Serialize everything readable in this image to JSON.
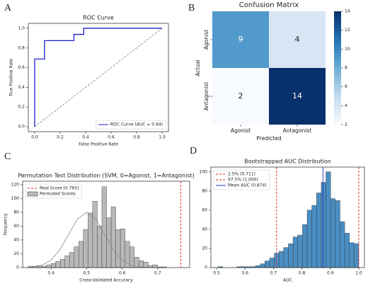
{
  "chart_data": [
    {
      "type": "line",
      "panel": "A",
      "title": "ROC Curve",
      "xlabel": "False Positive Rate",
      "ylabel": "True Positive Rate",
      "xlim": [
        -0.05,
        1.05
      ],
      "ylim": [
        -0.05,
        1.05
      ],
      "xticks": [
        {
          "value": 0,
          "label": "0.0"
        },
        0.2,
        0.4,
        0.6,
        0.8,
        {
          "value": 1,
          "label": "1.0"
        }
      ],
      "yticks": [
        {
          "value": 0,
          "label": "0.0"
        },
        0.2,
        0.4,
        0.6,
        0.8,
        {
          "value": 1,
          "label": "1.0"
        }
      ],
      "legend": "lower right",
      "series": [
        {
          "name": "ROC Curve (AUC = 0.94)",
          "color": "#1f1fd6",
          "x": [
            0,
            0,
            0.077,
            0.077,
            0.308,
            0.308,
            0.385,
            0.385,
            1
          ],
          "values": [
            0,
            0.688,
            0.688,
            0.875,
            0.875,
            0.938,
            0.938,
            1,
            1
          ]
        },
        {
          "color": "#777777",
          "dash": true,
          "x": [
            0,
            1
          ],
          "values": [
            0,
            1
          ]
        }
      ]
    },
    {
      "type": "heatmap",
      "panel": "B",
      "title": "Confusion Matrix",
      "xlabel": "Predicted",
      "ylabel": "Actual",
      "xcategories": [
        "Agonist",
        "Antagonist"
      ],
      "ycategories": [
        "Agonist",
        "Antagonist"
      ],
      "values": [
        [
          9,
          4
        ],
        [
          2,
          14
        ]
      ],
      "clim": [
        2,
        14
      ],
      "cticks": [
        2,
        4,
        6,
        8,
        10,
        12,
        14
      ],
      "colormap": "Blues"
    },
    {
      "type": "histogram",
      "panel": "C",
      "title": "Permutation Test Distribution (SVM, 0=Agonist, 1=Antagonist)",
      "xlabel": "Cross-Validated Accuracy",
      "ylabel": "Frequency",
      "color": "#b8b8b8",
      "bar_name": "Permuted Scores",
      "xlim": [
        0.32,
        0.79
      ],
      "ylim": [
        0,
        125
      ],
      "xticks": [
        0.4,
        0.5,
        0.6,
        0.7
      ],
      "yticks": [
        0,
        20,
        40,
        60,
        80,
        100,
        120
      ],
      "legend": "upper left",
      "bins": [
        0.335,
        0.348,
        0.361,
        0.374,
        0.387,
        0.4,
        0.413,
        0.426,
        0.439,
        0.452,
        0.465,
        0.478,
        0.491,
        0.504,
        0.517,
        0.53,
        0.543,
        0.556,
        0.569,
        0.582,
        0.595,
        0.608,
        0.621,
        0.634,
        0.647,
        0.66,
        0.673,
        0.686,
        0.699,
        0.712,
        0.725
      ],
      "values": [
        2,
        2,
        3,
        2,
        4,
        6,
        9,
        12,
        17,
        22,
        30,
        38,
        55,
        79,
        96,
        60,
        117,
        72,
        88,
        55,
        56,
        38,
        30,
        15,
        10,
        8,
        3,
        4,
        1,
        1
      ],
      "kde": {
        "color": "#888888",
        "x": [
          0.35,
          0.375,
          0.4,
          0.425,
          0.45,
          0.475,
          0.5,
          0.525,
          0.55,
          0.575,
          0.6,
          0.625,
          0.65,
          0.675,
          0.7
        ],
        "values": [
          0.9,
          3.5,
          10.8,
          26,
          48.5,
          70.6,
          80,
          70.6,
          48.5,
          26,
          10.8,
          3.5,
          0.9,
          0.2,
          0
        ]
      },
      "vlines": [
        {
          "name": "Real Score (0.765)",
          "value": 0.765,
          "color": "#e02020",
          "dash": true
        }
      ]
    },
    {
      "type": "histogram",
      "panel": "D",
      "title": "Bootstrapped AUC Distribution",
      "xlabel": "AUC",
      "color": "#4a8ec2",
      "xlim": [
        0.48,
        1.02
      ],
      "ylim": [
        0,
        105
      ],
      "xticks": [
        0.5,
        0.6,
        0.7,
        0.8,
        0.9,
        {
          "value": 1,
          "label": "1.0"
        }
      ],
      "yticks": [
        0,
        20,
        40,
        60,
        80,
        100
      ],
      "legend": "upper left",
      "bins": [
        0.505,
        0.5215,
        0.538,
        0.5545,
        0.571,
        0.5875,
        0.604,
        0.6205,
        0.637,
        0.6535,
        0.67,
        0.6865,
        0.703,
        0.7195,
        0.736,
        0.7525,
        0.769,
        0.7855,
        0.802,
        0.8185,
        0.835,
        0.8515,
        0.868,
        0.8845,
        0.901,
        0.9175,
        0.934,
        0.9505,
        0.967,
        0.9835,
        1.0
      ],
      "values": [
        1,
        0,
        0,
        0,
        1,
        1,
        1,
        1,
        2,
        4,
        7,
        10,
        15,
        17,
        21,
        25,
        32,
        34,
        45,
        60,
        65,
        78,
        89,
        100,
        72,
        70,
        48,
        36,
        26,
        25
      ],
      "vlines": [
        {
          "name": "2.5% (0.711)",
          "value": 0.711,
          "color": "#e02020",
          "dash": true
        },
        {
          "name": "97.5% (1.000)",
          "value": 1.0,
          "color": "#e02020",
          "dash": true
        },
        {
          "name": "Mean AUC (0.874)",
          "value": 0.874,
          "color": "#2030c0",
          "dash": false
        }
      ]
    }
  ]
}
